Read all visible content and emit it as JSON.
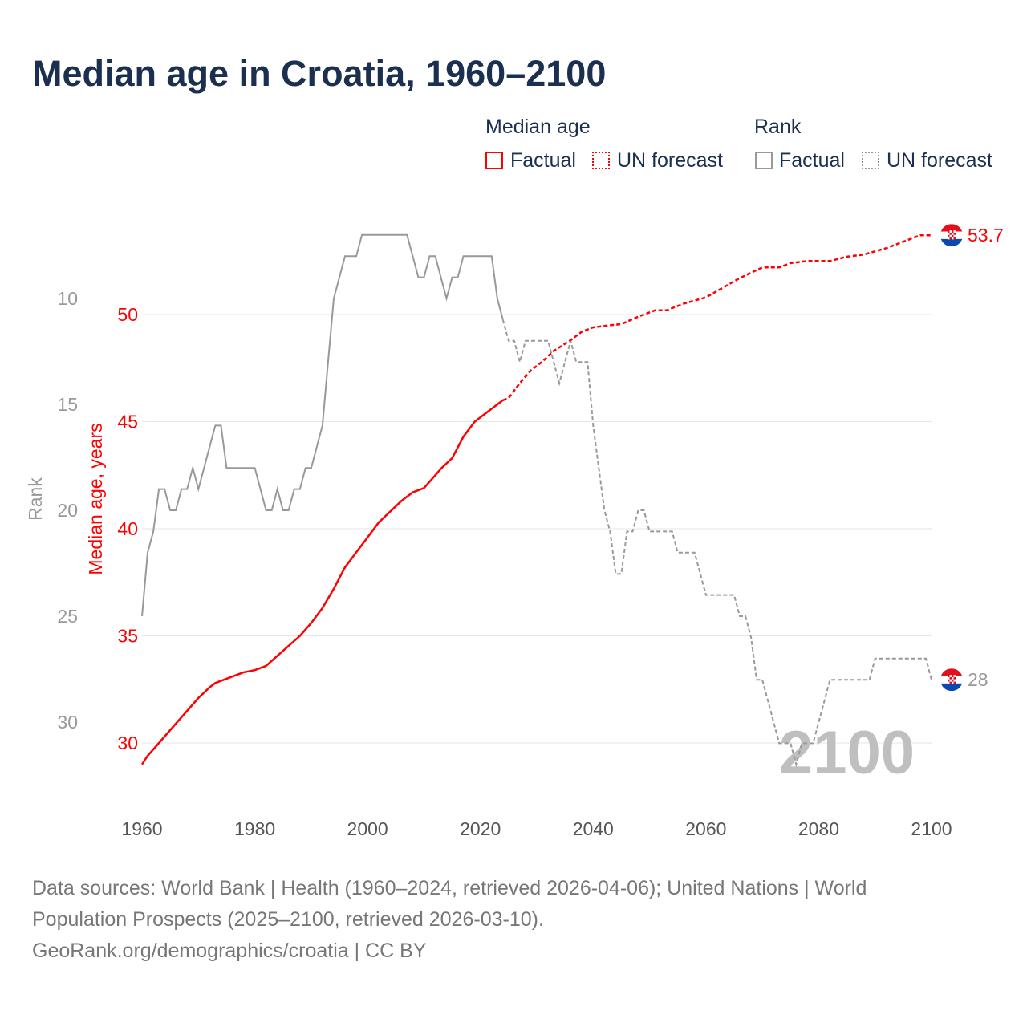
{
  "title": "Median age in Croatia, 1960–2100",
  "legend": {
    "median_heading": "Median age",
    "rank_heading": "Rank",
    "factual": "Factual",
    "forecast": "UN forecast"
  },
  "colors": {
    "median": "#ff0000",
    "rank": "#999999",
    "title": "#1b3050",
    "grid": "#e6e6e6",
    "watermark": "#bfbfbf"
  },
  "footer": {
    "line1": "Data sources: World Bank | Health (1960–2024, retrieved 2026-04-06); United Nations | World",
    "line2": "Population Prospects (2025–2100, retrieved 2026-03-10).",
    "line3": "GeoRank.org/demographics/croatia | CC BY"
  },
  "chart_data": {
    "type": "line",
    "title": "Median age in Croatia, 1960–2100",
    "xlabel": "",
    "ylabel": "Median age, years",
    "y2label": "Rank",
    "xlim": [
      1960,
      2100
    ],
    "ylim": [
      28,
      55
    ],
    "y2lim": [
      7,
      33
    ],
    "y2_inverted": true,
    "x_ticks": [
      "1960",
      "1980",
      "2000",
      "2020",
      "2040",
      "2060",
      "2080",
      "2100"
    ],
    "y_ticks": [
      "30",
      "35",
      "40",
      "45",
      "50"
    ],
    "y2_ticks": [
      "10",
      "15",
      "20",
      "25",
      "30"
    ],
    "watermark": "2100",
    "end_labels": {
      "median": "53.7",
      "rank": "28"
    },
    "median_factual": [
      [
        1960,
        29.0
      ],
      [
        1961,
        29.4
      ],
      [
        1962,
        29.7
      ],
      [
        1965,
        30.6
      ],
      [
        1968,
        31.5
      ],
      [
        1970,
        32.1
      ],
      [
        1972,
        32.6
      ],
      [
        1973,
        32.8
      ],
      [
        1975,
        33.0
      ],
      [
        1978,
        33.3
      ],
      [
        1980,
        33.4
      ],
      [
        1982,
        33.6
      ],
      [
        1985,
        34.3
      ],
      [
        1988,
        35.0
      ],
      [
        1990,
        35.6
      ],
      [
        1992,
        36.3
      ],
      [
        1994,
        37.2
      ],
      [
        1996,
        38.2
      ],
      [
        1998,
        38.9
      ],
      [
        2000,
        39.6
      ],
      [
        2002,
        40.3
      ],
      [
        2004,
        40.8
      ],
      [
        2006,
        41.3
      ],
      [
        2008,
        41.7
      ],
      [
        2010,
        41.9
      ],
      [
        2012,
        42.5
      ],
      [
        2013,
        42.8
      ],
      [
        2015,
        43.3
      ],
      [
        2017,
        44.3
      ],
      [
        2019,
        45.0
      ],
      [
        2021,
        45.4
      ],
      [
        2023,
        45.8
      ],
      [
        2024,
        46.0
      ]
    ],
    "median_forecast": [
      [
        2024,
        46.0
      ],
      [
        2025,
        46.1
      ],
      [
        2027,
        46.8
      ],
      [
        2029,
        47.4
      ],
      [
        2031,
        47.8
      ],
      [
        2033,
        48.3
      ],
      [
        2036,
        48.8
      ],
      [
        2038,
        49.2
      ],
      [
        2040,
        49.4
      ],
      [
        2043,
        49.5
      ],
      [
        2045,
        49.55
      ],
      [
        2048,
        49.9
      ],
      [
        2051,
        50.2
      ],
      [
        2053,
        50.2
      ],
      [
        2056,
        50.5
      ],
      [
        2060,
        50.8
      ],
      [
        2062,
        51.1
      ],
      [
        2064,
        51.4
      ],
      [
        2066,
        51.7
      ],
      [
        2070,
        52.2
      ],
      [
        2073,
        52.2
      ],
      [
        2075,
        52.4
      ],
      [
        2078,
        52.5
      ],
      [
        2082,
        52.5
      ],
      [
        2085,
        52.7
      ],
      [
        2088,
        52.8
      ],
      [
        2092,
        53.1
      ],
      [
        2095,
        53.4
      ],
      [
        2098,
        53.7
      ],
      [
        2100,
        53.7
      ]
    ],
    "rank_factual": {
      "start": 1960,
      "values": [
        25,
        22,
        21,
        19,
        19,
        20,
        20,
        19,
        19,
        18,
        19,
        18,
        17,
        16,
        16,
        18,
        18,
        18,
        18,
        18,
        18,
        19,
        20,
        20,
        19,
        20,
        20,
        19,
        19,
        18,
        18,
        17,
        16,
        13,
        10,
        9,
        8,
        8,
        8,
        7,
        7,
        7,
        7,
        7,
        7,
        7,
        7,
        7,
        8,
        9,
        9,
        8,
        8,
        9,
        10,
        9,
        9,
        8,
        8,
        8,
        8,
        8,
        8,
        10,
        11
      ]
    },
    "rank_forecast": {
      "start": 2024,
      "values": [
        11,
        12,
        12,
        13,
        12,
        12,
        12,
        12,
        12,
        13,
        14,
        13,
        12,
        13,
        13,
        13,
        16,
        18,
        20,
        21,
        23,
        23,
        21,
        21,
        20,
        20,
        21,
        21,
        21,
        21,
        21,
        22,
        22,
        22,
        22,
        23,
        24,
        24,
        24,
        24,
        24,
        24,
        25,
        25,
        26,
        28,
        28,
        29,
        30,
        31,
        31,
        31,
        32,
        31,
        31,
        31,
        30,
        29,
        28,
        28,
        28,
        28,
        28,
        28,
        28,
        28,
        27,
        27,
        27,
        27,
        27,
        27,
        27,
        27,
        27,
        27,
        28
      ]
    }
  }
}
